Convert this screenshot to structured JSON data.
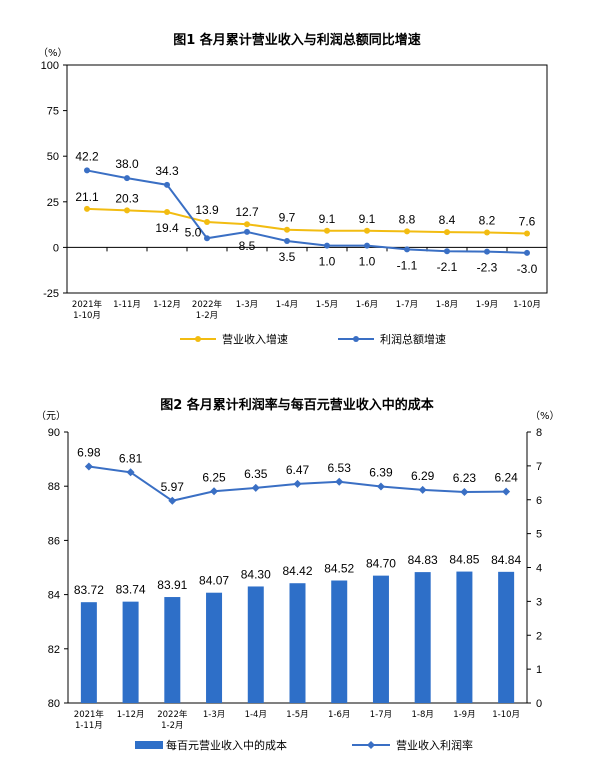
{
  "chart_data": [
    {
      "type": "line",
      "title": "图1  各月累计营业收入与利润总额同比增速",
      "ylabel": "（%）",
      "ylim": [
        -25,
        100
      ],
      "yticks": [
        "-25",
        "0",
        "25",
        "50",
        "75",
        "100"
      ],
      "grid": false,
      "legend_position": "bottom",
      "categories": [
        [
          "2021年",
          "1-10月"
        ],
        [
          "1-11月"
        ],
        [
          "1-12月"
        ],
        [
          "2022年",
          "1-2月"
        ],
        [
          "1-3月"
        ],
        [
          "1-4月"
        ],
        [
          "1-5月"
        ],
        [
          "1-6月"
        ],
        [
          "1-7月"
        ],
        [
          "1-8月"
        ],
        [
          "1-9月"
        ],
        [
          "1-10月"
        ]
      ],
      "series": [
        {
          "name": "营业收入增速",
          "color": "#F2BC11",
          "values": [
            21.1,
            20.3,
            19.4,
            13.9,
            12.7,
            9.7,
            9.1,
            9.1,
            8.8,
            8.4,
            8.2,
            7.6
          ],
          "labels": [
            "21.1",
            "20.3",
            "19.4",
            "13.9",
            "12.7",
            "9.7",
            "9.1",
            "9.1",
            "8.8",
            "8.4",
            "8.2",
            "7.6"
          ]
        },
        {
          "name": "利润总额增速",
          "color": "#3A6FC4",
          "values": [
            42.2,
            38.0,
            34.3,
            5.0,
            8.5,
            3.5,
            1.0,
            1.0,
            -1.1,
            -2.1,
            -2.3,
            -3.0
          ],
          "labels": [
            "42.2",
            "38.0",
            "34.3",
            "5.0",
            "8.5",
            "3.5",
            "1.0",
            "1.0",
            "-1.1",
            "-2.1",
            "-2.3",
            "-3.0"
          ]
        }
      ]
    },
    {
      "type": "bar",
      "title": "图2  各月累计利润率与每百元营业收入中的成本",
      "ylabel_left": "（元）",
      "ylabel_right": "（%）",
      "ylim_left": [
        80,
        90
      ],
      "ylim_right": [
        0,
        8
      ],
      "yticks_left": [
        "80",
        "82",
        "84",
        "86",
        "88",
        "90"
      ],
      "yticks_right": [
        "0",
        "1",
        "2",
        "3",
        "4",
        "5",
        "6",
        "7",
        "8"
      ],
      "grid": false,
      "legend_position": "bottom",
      "categories": [
        [
          "2021年",
          "1-11月"
        ],
        [
          "1-12月"
        ],
        [
          "2022年",
          "1-2月"
        ],
        [
          "1-3月"
        ],
        [
          "1-4月"
        ],
        [
          "1-5月"
        ],
        [
          "1-6月"
        ],
        [
          "1-7月"
        ],
        [
          "1-8月"
        ],
        [
          "1-9月"
        ],
        [
          "1-10月"
        ]
      ],
      "series": [
        {
          "name": "每百元营业收入中的成本",
          "kind": "bar",
          "axis": "left",
          "color": "#2E6FC8",
          "values": [
            83.72,
            83.74,
            83.91,
            84.07,
            84.3,
            84.42,
            84.52,
            84.7,
            84.83,
            84.85,
            84.84
          ],
          "labels": [
            "83.72",
            "83.74",
            "83.91",
            "84.07",
            "84.30",
            "84.42",
            "84.52",
            "84.70",
            "84.83",
            "84.85",
            "84.84"
          ]
        },
        {
          "name": "营业收入利润率",
          "kind": "line",
          "axis": "right",
          "color": "#3A6FC4",
          "values": [
            6.98,
            6.81,
            5.97,
            6.25,
            6.35,
            6.47,
            6.53,
            6.39,
            6.29,
            6.23,
            6.24
          ],
          "labels": [
            "6.98",
            "6.81",
            "5.97",
            "6.25",
            "6.35",
            "6.47",
            "6.53",
            "6.39",
            "6.29",
            "6.23",
            "6.24"
          ]
        }
      ]
    }
  ]
}
